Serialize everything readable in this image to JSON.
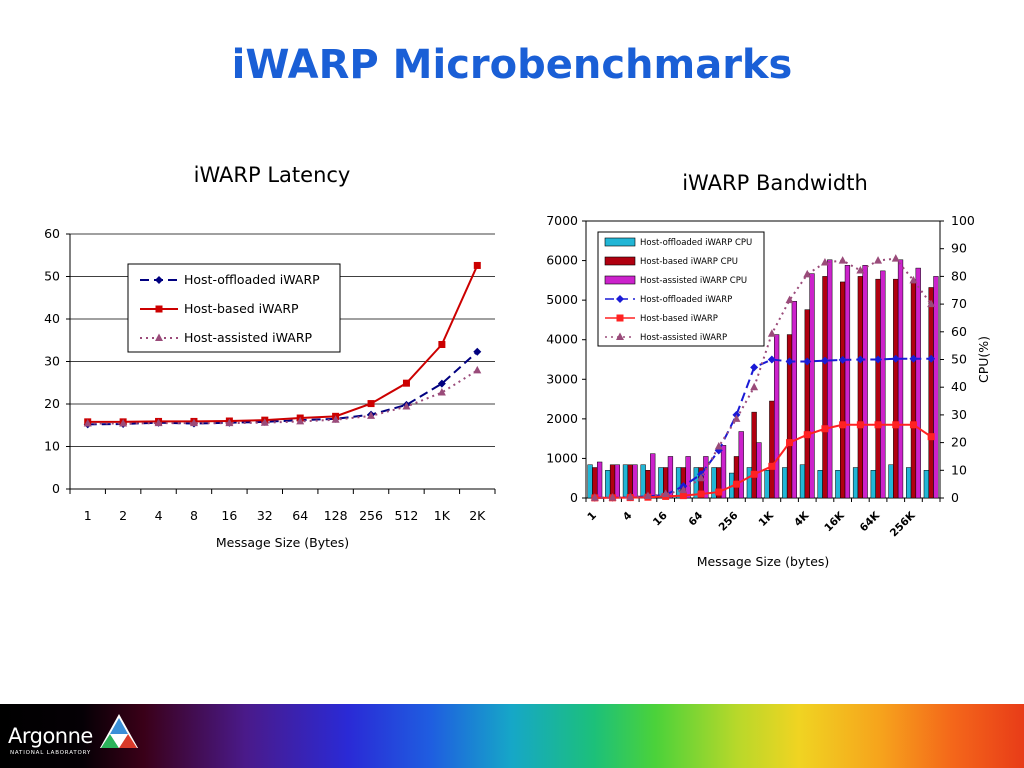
{
  "slide": {
    "title": "iWARP Microbenchmarks"
  },
  "footer": {
    "logo_text": "Argonne",
    "logo_subtext": "NATIONAL LABORATORY"
  },
  "colors": {
    "title": "#1a5fd6",
    "offloaded": "#000080",
    "hostbased": "#cc0000",
    "assisted": "#9a4b7a",
    "bar_offloaded": "#22b6d6",
    "bar_hostbased": "#b00010",
    "bar_assisted": "#cc22cc"
  },
  "chart_data": [
    {
      "type": "line",
      "title": "iWARP Latency",
      "xlabel": "Message Size (Bytes)",
      "ylabel": "",
      "categories": [
        "1",
        "2",
        "4",
        "8",
        "16",
        "32",
        "64",
        "128",
        "256",
        "512",
        "1K",
        "2K"
      ],
      "ylim": [
        0,
        60
      ],
      "yticks": [
        0,
        10,
        20,
        30,
        40,
        50,
        60
      ],
      "grid": true,
      "legend_position": "upper-middle",
      "series": [
        {
          "name": "Host-offloaded iWARP",
          "style": "dashed",
          "marker": "diamond",
          "color": "#000080",
          "values": [
            15.2,
            15.3,
            15.6,
            15.4,
            15.6,
            15.8,
            16.2,
            16.5,
            17.5,
            19.8,
            24.8,
            32.3
          ]
        },
        {
          "name": "Host-based iWARP",
          "style": "solid",
          "marker": "square",
          "color": "#cc0000",
          "values": [
            15.8,
            15.8,
            15.9,
            15.9,
            16.0,
            16.2,
            16.7,
            17.1,
            20.1,
            24.9,
            34.0,
            52.6
          ]
        },
        {
          "name": "Host-assisted iWARP",
          "style": "dotted",
          "marker": "triangle",
          "color": "#9a4b7a",
          "values": [
            15.4,
            15.4,
            15.5,
            15.5,
            15.5,
            15.6,
            15.9,
            16.3,
            17.2,
            19.4,
            22.7,
            27.9
          ]
        }
      ]
    },
    {
      "type": "bar",
      "title": "iWARP Bandwidth",
      "xlabel": "Message Size (bytes)",
      "ylabel": "",
      "y2label": "CPU(%)",
      "tick_labels": [
        "1",
        "4",
        "16",
        "64",
        "256",
        "1K",
        "4K",
        "16K",
        "64K",
        "256K"
      ],
      "n_points": 20,
      "ylim": [
        0,
        7000
      ],
      "yticks": [
        0,
        1000,
        2000,
        3000,
        4000,
        5000,
        6000,
        7000
      ],
      "y2lim": [
        0,
        100
      ],
      "y2ticks": [
        0,
        10,
        20,
        30,
        40,
        50,
        60,
        70,
        80,
        90,
        100
      ],
      "legend_position": "top-left",
      "series": [
        {
          "name": "Host-offloaded iWARP CPU",
          "kind": "bar",
          "axis": "y2",
          "color": "#22b6d6",
          "values": [
            12,
            10,
            12,
            12,
            11,
            11,
            11,
            11,
            9,
            11,
            10,
            11,
            12,
            10,
            10,
            11,
            10,
            12,
            11,
            10
          ]
        },
        {
          "name": "Host-based iWARP CPU",
          "kind": "bar",
          "axis": "y2",
          "color": "#b00010",
          "values": [
            11,
            12,
            12,
            10,
            11,
            11,
            11,
            11,
            15,
            31,
            35,
            59,
            68,
            80,
            78,
            80,
            79,
            79,
            78,
            76
          ]
        },
        {
          "name": "Host-assisted iWARP CPU",
          "kind": "bar",
          "axis": "y2",
          "color": "#cc22cc",
          "values": [
            13,
            12,
            12,
            16,
            15,
            15,
            15,
            19,
            24,
            20,
            59,
            71,
            81,
            86,
            84,
            84,
            82,
            86,
            83,
            80
          ]
        },
        {
          "name": "Host-offloaded iWARP",
          "kind": "line",
          "axis": "y",
          "style": "dashed",
          "marker": "diamond",
          "color": "#1a1ad6",
          "values": [
            5,
            10,
            20,
            40,
            80,
            300,
            600,
            1200,
            2100,
            3300,
            3500,
            3450,
            3450,
            3470,
            3490,
            3500,
            3500,
            3520,
            3520,
            3520
          ]
        },
        {
          "name": "Host-based iWARP",
          "kind": "line",
          "axis": "y",
          "style": "solid",
          "marker": "square",
          "color": "#ff2222",
          "values": [
            3,
            5,
            10,
            20,
            40,
            60,
            100,
            150,
            350,
            600,
            800,
            1400,
            1600,
            1750,
            1850,
            1850,
            1850,
            1850,
            1850,
            1550
          ]
        },
        {
          "name": "Host-assisted iWARP",
          "kind": "line",
          "axis": "y",
          "style": "dotted",
          "marker": "triangle",
          "color": "#9a4b7a",
          "values": [
            5,
            10,
            20,
            50,
            100,
            200,
            500,
            1300,
            2000,
            2800,
            4150,
            5000,
            5650,
            5950,
            6000,
            5750,
            6000,
            6050,
            5500,
            4900
          ]
        }
      ]
    }
  ]
}
